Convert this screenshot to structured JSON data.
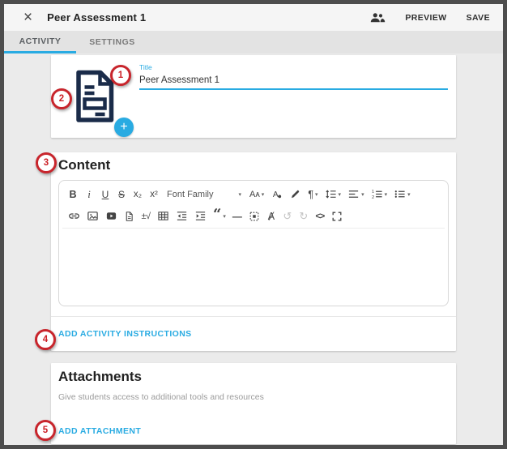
{
  "header": {
    "title": "Peer Assessment 1",
    "close_glyph": "×",
    "preview_label": "PREVIEW",
    "save_label": "SAVE"
  },
  "tabs": [
    {
      "label": "ACTIVITY",
      "active": true
    },
    {
      "label": "SETTINGS",
      "active": false
    }
  ],
  "title_card": {
    "field_label": "Title",
    "field_value": "Peer Assessment 1",
    "add_button_glyph": "+"
  },
  "content_card": {
    "heading": "Content",
    "add_instructions_label": "ADD ACTIVITY INSTRUCTIONS"
  },
  "attachments_card": {
    "heading": "Attachments",
    "subtitle": "Give students access to additional tools and resources",
    "add_attachment_label": "ADD ATTACHMENT"
  },
  "callouts": [
    {
      "number": "1"
    },
    {
      "number": "2"
    },
    {
      "number": "3"
    },
    {
      "number": "4"
    },
    {
      "number": "5"
    }
  ],
  "editor": {
    "toolbar_row1": [
      {
        "name": "bold",
        "glyph": "B"
      },
      {
        "name": "italic",
        "glyph": "i"
      },
      {
        "name": "underline",
        "glyph": "U"
      },
      {
        "name": "strikethrough",
        "glyph": "S"
      },
      {
        "name": "subscript",
        "glyph": "x₂"
      },
      {
        "name": "superscript",
        "glyph": "x²"
      },
      {
        "name": "font-family",
        "label": "Font Family",
        "caret": true
      },
      {
        "name": "font-size",
        "glyph": "Aᴀ",
        "caret": true
      },
      {
        "name": "font-color",
        "svg": true
      },
      {
        "name": "highlight",
        "svg": true
      },
      {
        "name": "paragraph-format",
        "glyph": "¶",
        "caret": true
      },
      {
        "name": "line-height",
        "svg": true,
        "caret": true
      },
      {
        "name": "align",
        "svg": true,
        "caret": true
      },
      {
        "name": "ordered-list",
        "svg": true,
        "caret": true
      },
      {
        "name": "unordered-list",
        "svg": true,
        "caret": true
      }
    ],
    "toolbar_row2": [
      {
        "name": "insert-link",
        "svg": true
      },
      {
        "name": "insert-image",
        "svg": true
      },
      {
        "name": "insert-video",
        "svg": true
      },
      {
        "name": "insert-file",
        "svg": true
      },
      {
        "name": "insert-formula",
        "glyph": "±√"
      },
      {
        "name": "insert-table",
        "svg": true
      },
      {
        "name": "outdent",
        "svg": true
      },
      {
        "name": "indent",
        "svg": true
      },
      {
        "name": "quote",
        "glyph": "“",
        "caret": true
      },
      {
        "name": "horizontal-rule",
        "glyph": "—"
      },
      {
        "name": "select-all",
        "svg": true
      },
      {
        "name": "clear-formatting",
        "glyph": "Ⱥ"
      },
      {
        "name": "undo",
        "glyph": "↺",
        "disabled": true
      },
      {
        "name": "redo",
        "glyph": "↻",
        "disabled": true
      },
      {
        "name": "code-view",
        "glyph": "<>"
      },
      {
        "name": "fullscreen",
        "svg": true
      }
    ]
  },
  "colors": {
    "accent_blue": "#29abe2",
    "callout_red": "#c8252c",
    "document_icon_navy": "#1a2b49",
    "frame_border": "#4d4d4d"
  }
}
